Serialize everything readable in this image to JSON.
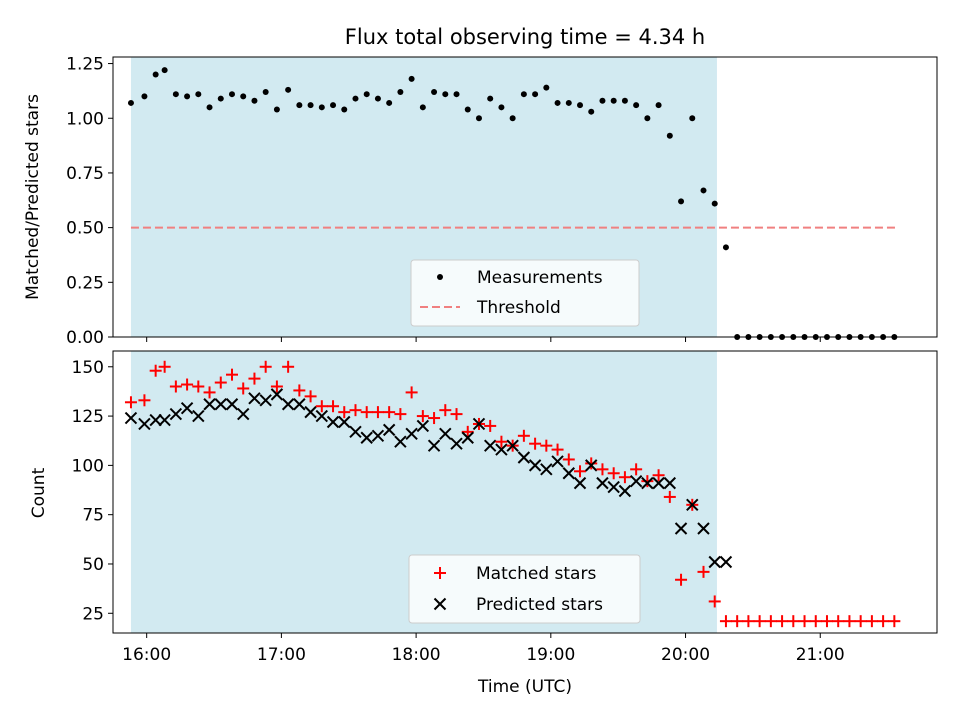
{
  "title": "Flux total observing time = 4.34 h",
  "colors": {
    "shade": "#add8e6",
    "measurements": "#000000",
    "threshold": "#f08080",
    "matched": "#ff0000",
    "predicted": "#000000"
  },
  "chart_data": [
    {
      "type": "scatter",
      "ylabel": "Matched/Predicted stars",
      "ylim": [
        0,
        1.28
      ],
      "xlim": [
        "15:45",
        "21:52"
      ],
      "yticks": [
        "0.00",
        "0.25",
        "0.50",
        "0.75",
        "1.00",
        "1.25"
      ],
      "observing_window": [
        "15:53",
        "20:14"
      ],
      "legend": {
        "placement": "lower-center",
        "entries": [
          "Measurements",
          "Threshold"
        ]
      },
      "threshold": {
        "name": "Threshold",
        "value": 0.5,
        "x": [
          "15:53",
          "21:34"
        ]
      },
      "series": [
        {
          "name": "Measurements",
          "marker": "dot",
          "x": [
            "15:53",
            "15:59",
            "16:04",
            "16:08",
            "16:13",
            "16:18",
            "16:23",
            "16:28",
            "16:33",
            "16:38",
            "16:43",
            "16:48",
            "16:53",
            "16:58",
            "17:03",
            "17:08",
            "17:13",
            "17:18",
            "17:23",
            "17:28",
            "17:33",
            "17:38",
            "17:43",
            "17:48",
            "17:53",
            "17:58",
            "18:03",
            "18:08",
            "18:13",
            "18:18",
            "18:23",
            "18:28",
            "18:33",
            "18:38",
            "18:43",
            "18:48",
            "18:53",
            "18:58",
            "19:03",
            "19:08",
            "19:13",
            "19:18",
            "19:23",
            "19:28",
            "19:33",
            "19:38",
            "19:43",
            "19:48",
            "19:53",
            "19:58",
            "20:03",
            "20:08",
            "20:13",
            "20:18",
            "20:23",
            "20:28",
            "20:33",
            "20:38",
            "20:43",
            "20:48",
            "20:53",
            "20:58",
            "21:03",
            "21:08",
            "21:13",
            "21:18",
            "21:23",
            "21:28",
            "21:33"
          ],
          "y": [
            1.07,
            1.1,
            1.2,
            1.22,
            1.11,
            1.1,
            1.11,
            1.05,
            1.09,
            1.11,
            1.1,
            1.08,
            1.12,
            1.04,
            1.13,
            1.06,
            1.06,
            1.05,
            1.06,
            1.04,
            1.09,
            1.11,
            1.09,
            1.07,
            1.12,
            1.18,
            1.05,
            1.12,
            1.11,
            1.11,
            1.04,
            1.0,
            1.09,
            1.05,
            1.0,
            1.11,
            1.11,
            1.14,
            1.07,
            1.07,
            1.06,
            1.03,
            1.08,
            1.08,
            1.08,
            1.06,
            1.0,
            1.06,
            0.92,
            0.62,
            1.0,
            0.67,
            0.61,
            0.41,
            0,
            0,
            0,
            0,
            0,
            0,
            0,
            0,
            0,
            0,
            0,
            0,
            0,
            0,
            0
          ]
        }
      ]
    },
    {
      "type": "scatter",
      "ylabel": "Count",
      "xlabel": "Time (UTC)",
      "ylim": [
        15,
        158
      ],
      "xlim": [
        "15:45",
        "21:52"
      ],
      "yticks": [
        "25",
        "50",
        "75",
        "100",
        "125",
        "150"
      ],
      "xticks": [
        "16:00",
        "17:00",
        "18:00",
        "19:00",
        "20:00",
        "21:00"
      ],
      "observing_window": [
        "15:53",
        "20:14"
      ],
      "legend": {
        "placement": "lower-center",
        "entries": [
          "Matched stars",
          "Predicted stars"
        ]
      },
      "x": [
        "15:53",
        "15:59",
        "16:04",
        "16:08",
        "16:13",
        "16:18",
        "16:23",
        "16:28",
        "16:33",
        "16:38",
        "16:43",
        "16:48",
        "16:53",
        "16:58",
        "17:03",
        "17:08",
        "17:13",
        "17:18",
        "17:23",
        "17:28",
        "17:33",
        "17:38",
        "17:43",
        "17:48",
        "17:53",
        "17:58",
        "18:03",
        "18:08",
        "18:13",
        "18:18",
        "18:23",
        "18:28",
        "18:33",
        "18:38",
        "18:43",
        "18:48",
        "18:53",
        "18:58",
        "19:03",
        "19:08",
        "19:13",
        "19:18",
        "19:23",
        "19:28",
        "19:33",
        "19:38",
        "19:43",
        "19:48",
        "19:53",
        "19:58",
        "20:03",
        "20:08",
        "20:13",
        "20:18",
        "20:23",
        "20:28",
        "20:33",
        "20:38",
        "20:43",
        "20:48",
        "20:53",
        "20:58",
        "21:03",
        "21:08",
        "21:13",
        "21:18",
        "21:23",
        "21:28",
        "21:33"
      ],
      "series": [
        {
          "name": "Matched stars",
          "marker": "plus",
          "values": [
            132,
            133,
            148,
            150,
            140,
            141,
            140,
            137,
            142,
            146,
            139,
            144,
            150,
            140,
            150,
            138,
            135,
            130,
            130,
            127,
            128,
            127,
            127,
            127,
            126,
            137,
            125,
            124,
            128,
            126,
            117,
            121,
            120,
            112,
            110,
            115,
            111,
            110,
            108,
            103,
            97,
            101,
            98,
            96,
            94,
            98,
            92,
            95,
            84,
            42,
            80,
            46,
            31,
            21,
            21,
            21,
            21,
            21,
            21,
            21,
            21,
            21,
            21,
            21,
            21,
            21,
            21,
            21,
            21
          ]
        },
        {
          "name": "Predicted stars",
          "marker": "x",
          "values": [
            124,
            121,
            123,
            123,
            126,
            129,
            125,
            131,
            131,
            131,
            126,
            134,
            133,
            136,
            131,
            131,
            127,
            125,
            122,
            122,
            117,
            114,
            115,
            118,
            112,
            116,
            120,
            110,
            116,
            111,
            114,
            121,
            110,
            108,
            110,
            104,
            100,
            98,
            102,
            96,
            91,
            100,
            91,
            89,
            87,
            92,
            91,
            91,
            91,
            68,
            80,
            68,
            51,
            51,
            null,
            null,
            null,
            null,
            null,
            null,
            null,
            null,
            null,
            null,
            null,
            null,
            null,
            null,
            null
          ]
        }
      ]
    }
  ]
}
